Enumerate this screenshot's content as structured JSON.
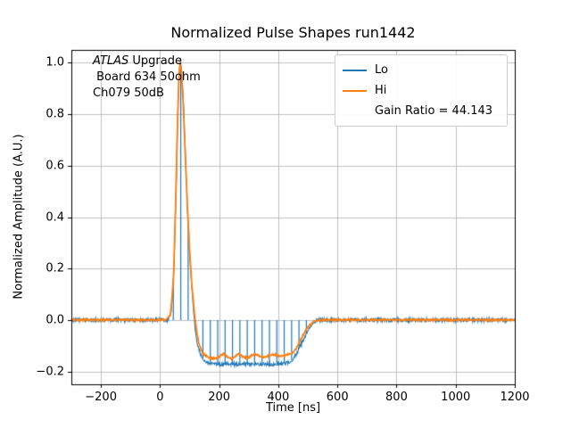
{
  "colors": {
    "background": "#ffffff",
    "grid": "#b0b0b0",
    "spine": "#000000",
    "lo": "#1f77b4",
    "hi": "#ff7f0e"
  },
  "chart_data": {
    "type": "line",
    "title": "Normalized Pulse Shapes run1442",
    "xlabel": "Time [ns]",
    "ylabel": "Normalized Amplitude (A.U.)",
    "xlim": [
      -300,
      1200
    ],
    "ylim": [
      -0.25,
      1.05
    ],
    "xticks": [
      -200,
      0,
      200,
      400,
      600,
      800,
      1000,
      1200
    ],
    "xtick_labels": [
      "−200",
      "0",
      "200",
      "400",
      "600",
      "800",
      "1000",
      "1200"
    ],
    "yticks": [
      -0.2,
      0.0,
      0.2,
      0.4,
      0.6,
      0.8,
      1.0
    ],
    "ytick_labels": [
      "−0.2",
      "0.0",
      "0.2",
      "0.4",
      "0.6",
      "0.8",
      "1.0"
    ],
    "grid": true,
    "legend": {
      "position": "upper right",
      "entries": [
        {
          "label": "Lo",
          "color": "#1f77b4"
        },
        {
          "label": "Hi",
          "color": "#ff7f0e"
        },
        {
          "label": "Gain Ratio = 44.143",
          "color": null
        }
      ]
    },
    "annotation": {
      "line1_italic": "ATLAS",
      "line1_rest": " Upgrade",
      "line2": " Board 634 50ohm",
      "line3": "Ch079 50dB"
    },
    "series": [
      {
        "name": "Lo",
        "color": "#1f77b4",
        "noise": 0.007,
        "linewidth": 1.1,
        "comb": {
          "start": 45,
          "end": 520,
          "period": 25
        },
        "points": [
          [
            -300,
            0
          ],
          [
            25,
            0
          ],
          [
            38,
            0.03
          ],
          [
            47,
            0.2
          ],
          [
            54,
            0.5
          ],
          [
            60,
            0.8
          ],
          [
            65,
            0.97
          ],
          [
            69,
            1.0
          ],
          [
            74,
            0.96
          ],
          [
            80,
            0.82
          ],
          [
            87,
            0.6
          ],
          [
            94,
            0.4
          ],
          [
            102,
            0.22
          ],
          [
            110,
            0.08
          ],
          [
            118,
            -0.03
          ],
          [
            126,
            -0.09
          ],
          [
            136,
            -0.13
          ],
          [
            148,
            -0.155
          ],
          [
            162,
            -0.165
          ],
          [
            180,
            -0.17
          ],
          [
            200,
            -0.172
          ],
          [
            230,
            -0.17
          ],
          [
            260,
            -0.173
          ],
          [
            290,
            -0.17
          ],
          [
            320,
            -0.172
          ],
          [
            350,
            -0.17
          ],
          [
            380,
            -0.172
          ],
          [
            410,
            -0.17
          ],
          [
            430,
            -0.168
          ],
          [
            448,
            -0.155
          ],
          [
            462,
            -0.13
          ],
          [
            475,
            -0.1
          ],
          [
            488,
            -0.068
          ],
          [
            500,
            -0.04
          ],
          [
            512,
            -0.02
          ],
          [
            524,
            -0.007
          ],
          [
            538,
            0
          ],
          [
            1200,
            0
          ]
        ]
      },
      {
        "name": "Hi",
        "color": "#ff7f0e",
        "noise": 0.003,
        "linewidth": 1.8,
        "comb": null,
        "points": [
          [
            -300,
            0
          ],
          [
            20,
            0
          ],
          [
            35,
            0.02
          ],
          [
            45,
            0.15
          ],
          [
            52,
            0.42
          ],
          [
            58,
            0.72
          ],
          [
            63,
            0.92
          ],
          [
            67,
            1.0
          ],
          [
            72,
            0.97
          ],
          [
            78,
            0.85
          ],
          [
            85,
            0.65
          ],
          [
            92,
            0.45
          ],
          [
            100,
            0.27
          ],
          [
            108,
            0.13
          ],
          [
            116,
            0.03
          ],
          [
            124,
            -0.045
          ],
          [
            132,
            -0.095
          ],
          [
            142,
            -0.125
          ],
          [
            155,
            -0.14
          ],
          [
            170,
            -0.148
          ],
          [
            185,
            -0.15
          ],
          [
            200,
            -0.143
          ],
          [
            215,
            -0.13
          ],
          [
            228,
            -0.145
          ],
          [
            242,
            -0.152
          ],
          [
            255,
            -0.14
          ],
          [
            268,
            -0.132
          ],
          [
            282,
            -0.145
          ],
          [
            296,
            -0.148
          ],
          [
            310,
            -0.138
          ],
          [
            325,
            -0.133
          ],
          [
            340,
            -0.142
          ],
          [
            355,
            -0.145
          ],
          [
            370,
            -0.137
          ],
          [
            385,
            -0.133
          ],
          [
            400,
            -0.14
          ],
          [
            415,
            -0.14
          ],
          [
            430,
            -0.135
          ],
          [
            445,
            -0.13
          ],
          [
            458,
            -0.115
          ],
          [
            470,
            -0.09
          ],
          [
            482,
            -0.062
          ],
          [
            494,
            -0.038
          ],
          [
            506,
            -0.02
          ],
          [
            518,
            -0.008
          ],
          [
            530,
            -0.002
          ],
          [
            545,
            0
          ],
          [
            1200,
            0
          ]
        ]
      }
    ]
  }
}
